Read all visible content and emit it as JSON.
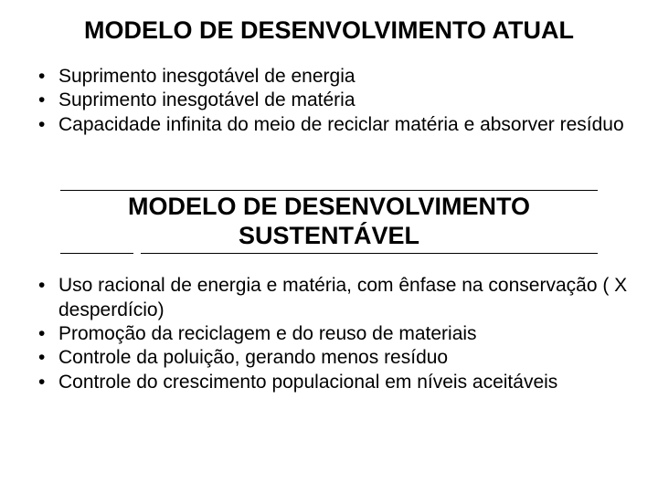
{
  "heading1": "MODELO DE DESENVOLVIMENTO ATUAL",
  "list1": {
    "i0": "Suprimento inesgotável de energia",
    "i1": "Suprimento inesgotável de matéria",
    "i2": "Capacidade infinita do meio de reciclar matéria e absorver resíduo"
  },
  "heading2": "MODELO DE DESENVOLVIMENTO SUSTENTÁVEL",
  "list2": {
    "i0": "Uso racional de energia e matéria, com ênfase na conservação ( X desperdício)",
    "i1": "Promoção da reciclagem e do reuso de materiais",
    "i2": "Controle da poluição, gerando menos resíduo",
    "i3": "Controle do crescimento populacional em níveis aceitáveis"
  }
}
